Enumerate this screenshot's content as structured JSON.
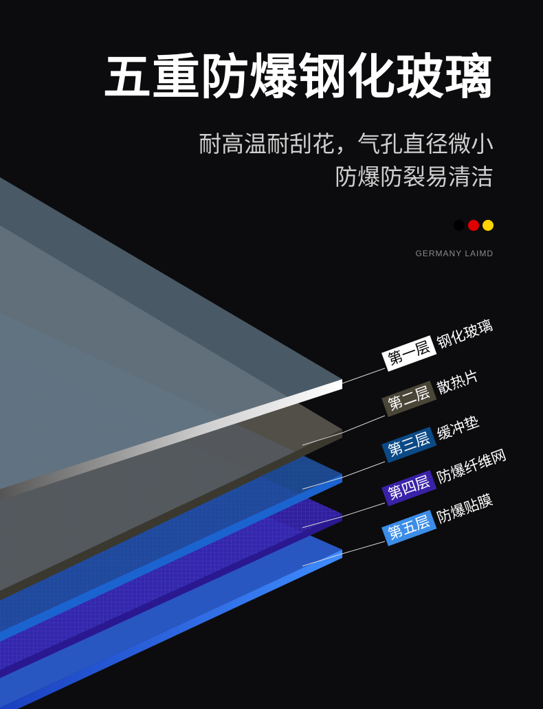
{
  "title": "五重防爆钢化玻璃",
  "subtitle_line1": "耐高温耐刮花，气孔直径微小",
  "subtitle_line2": "防爆防裂易清洁",
  "brand": "GERMANY LAIMD",
  "flag_colors": [
    "#000000",
    "#e10000",
    "#ffd400"
  ],
  "layers": [
    {
      "badge": "第一层",
      "name": "钢化玻璃",
      "badge_bg": "#ffffff",
      "badge_color": "#000000"
    },
    {
      "badge": "第二层",
      "name": "散热片",
      "badge_bg": "#4a4637",
      "badge_color": "#ffffff"
    },
    {
      "badge": "第三层",
      "name": "缓冲垫",
      "badge_bg": "#0b4a86",
      "badge_color": "#ffffff"
    },
    {
      "badge": "第四层",
      "name": "防爆纤维网",
      "badge_bg": "#3a22a8",
      "badge_color": "#ffffff"
    },
    {
      "badge": "第五层",
      "name": "防爆贴膜",
      "badge_bg": "#3b8de8",
      "badge_color": "#ffffff"
    }
  ]
}
